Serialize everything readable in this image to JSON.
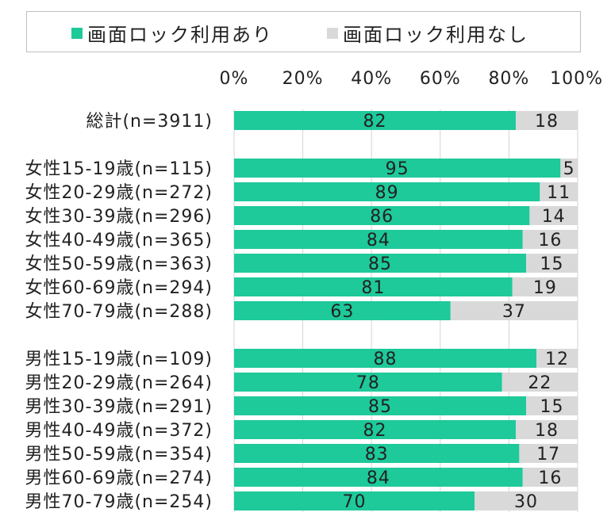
{
  "chart_data": {
    "type": "bar",
    "orientation": "horizontal",
    "stacked": true,
    "title": "",
    "xlabel": "",
    "ylabel": "",
    "xlim": [
      0,
      100
    ],
    "x_ticks": [
      "0%",
      "20%",
      "40%",
      "60%",
      "80%",
      "100%"
    ],
    "grid": true,
    "legend_position": "top",
    "categories": [
      "総計(n=3911)",
      "女性15-19歳(n=115)",
      "女性20-29歳(n=272)",
      "女性30-39歳(n=296)",
      "女性40-49歳(n=365)",
      "女性50-59歳(n=363)",
      "女性60-69歳(n=294)",
      "女性70-79歳(n=288)",
      "男性15-19歳(n=109)",
      "男性20-29歳(n=264)",
      "男性30-39歳(n=291)",
      "男性40-49歳(n=372)",
      "男性50-59歳(n=354)",
      "男性60-69歳(n=274)",
      "男性70-79歳(n=254)"
    ],
    "groups": [
      [
        0
      ],
      [
        1,
        2,
        3,
        4,
        5,
        6,
        7
      ],
      [
        8,
        9,
        10,
        11,
        12,
        13,
        14
      ]
    ],
    "series": [
      {
        "name": "画面ロック利用あり",
        "color": "#1ec99a",
        "values": [
          82,
          95,
          89,
          86,
          84,
          85,
          81,
          63,
          88,
          78,
          85,
          82,
          83,
          84,
          70
        ]
      },
      {
        "name": "画面ロック利用なし",
        "color": "#d9d9d9",
        "values": [
          18,
          5,
          11,
          14,
          16,
          15,
          19,
          37,
          12,
          22,
          15,
          18,
          17,
          16,
          30
        ]
      }
    ]
  }
}
